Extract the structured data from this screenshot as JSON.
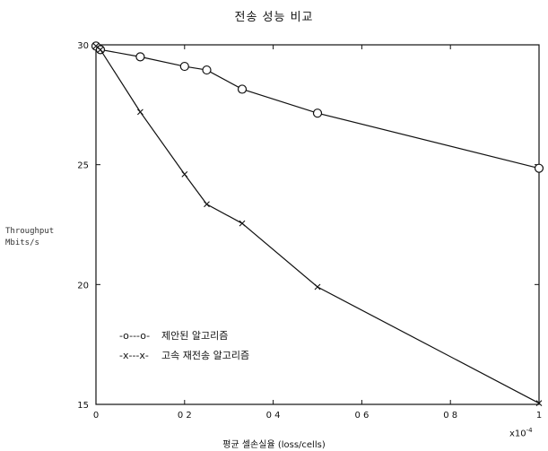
{
  "chart_data": {
    "type": "line",
    "title": "전송 성능 비교",
    "xlabel": "평균 셀손실율 (loss/cells)",
    "x_multiplier": "x10^-4",
    "ylabel": [
      "Throughput",
      "Mbits/s"
    ],
    "xlim": [
      0,
      1
    ],
    "ylim": [
      15,
      30
    ],
    "xticks": [
      0,
      0.2,
      0.4,
      0.6,
      0.8,
      1
    ],
    "xtick_labels": [
      "0",
      "0 2",
      "0 4",
      "0 6",
      "0 8",
      "1"
    ],
    "yticks": [
      15,
      20,
      25,
      30
    ],
    "ytick_labels": [
      "15",
      "20",
      "25",
      "30"
    ],
    "grid": false,
    "legend_position": "bottom-left",
    "series": [
      {
        "name": "제안된 알고리즘",
        "legend_marker": "-o---o-",
        "marker": "o",
        "x": [
          0,
          0.01,
          0.1,
          0.2,
          0.25,
          0.33,
          0.5,
          1.0
        ],
        "y": [
          29.95,
          29.8,
          29.5,
          29.1,
          28.95,
          28.15,
          27.15,
          24.85
        ]
      },
      {
        "name": "고속 재전송 알고리즘",
        "legend_marker": "-x---x-",
        "marker": "x",
        "x": [
          0,
          0.01,
          0.1,
          0.2,
          0.25,
          0.33,
          0.5,
          1.0
        ],
        "y": [
          29.95,
          29.8,
          27.2,
          24.6,
          23.35,
          22.55,
          19.9,
          15.05
        ]
      }
    ]
  }
}
